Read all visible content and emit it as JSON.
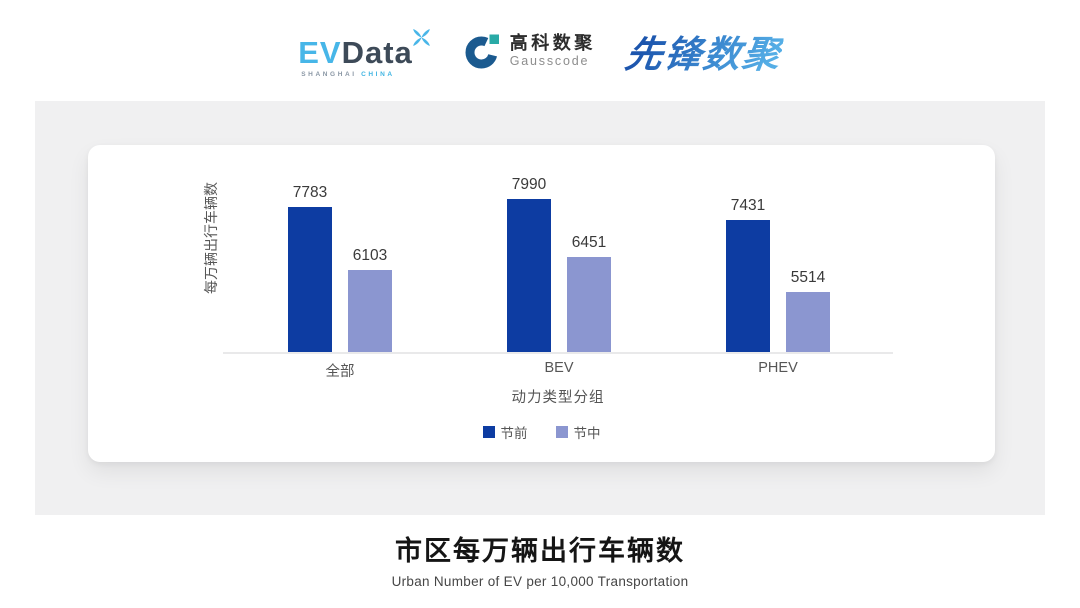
{
  "header": {
    "evdata": {
      "ev": "EV",
      "data": "Data",
      "tagline_left": "SHANGHAI",
      "tagline_right": "CHINA"
    },
    "gausscode": {
      "cn": "高科数聚",
      "en": "Gausscode"
    },
    "xianfeng": {
      "text": "先锋数聚"
    }
  },
  "chart_data": {
    "type": "bar",
    "title": "市区每万辆出行车辆数",
    "subtitle": "Urban Number of EV per 10,000 Transportation",
    "xlabel": "动力类型分组",
    "ylabel": "每万辆出行车辆数",
    "categories": [
      "全部",
      "BEV",
      "PHEV"
    ],
    "series": [
      {
        "name": "节前",
        "color": "#0d3ca2",
        "values": [
          7783,
          7990,
          7431
        ]
      },
      {
        "name": "节中",
        "color": "#8b96d0",
        "values": [
          6103,
          6451,
          5514
        ]
      }
    ],
    "ylim": [
      3900,
      7990
    ],
    "grid": false,
    "legend_position": "bottom",
    "value_labels": true
  },
  "colors": {
    "panel_bg": "#f0f0f1",
    "card_bg": "#ffffff",
    "axis_line": "#e9e9ea",
    "evdata_blue": "#47b6e8",
    "evdata_dark": "#3d4a58",
    "gauss_navy": "#1b5a8f",
    "gauss_teal": "#29aaa6"
  }
}
